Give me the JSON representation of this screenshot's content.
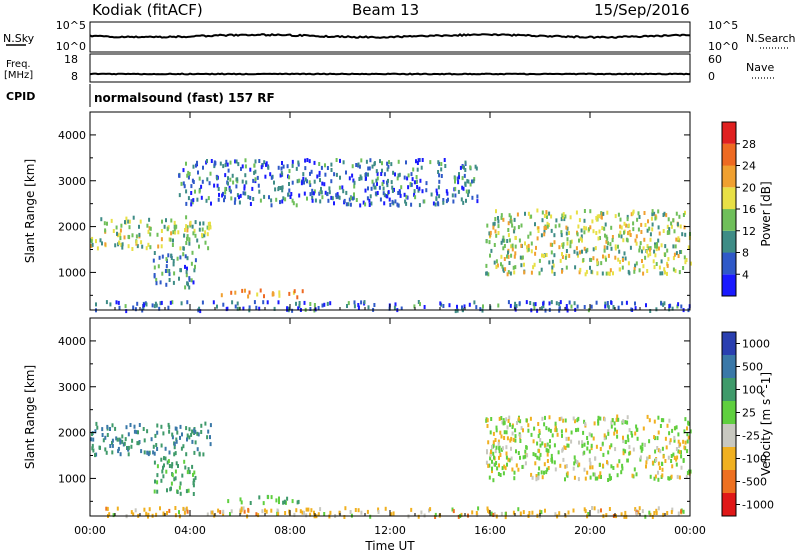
{
  "header": {
    "station": "Kodiak (fitACF)",
    "beam": "Beam 13",
    "date": "15/Sep/2016"
  },
  "strips": {
    "nsky_label": "N.Sky",
    "nsearch_label": "N.Search",
    "freq_label_1": "Freq.",
    "freq_label_2": "[MHz]",
    "nave_label": "Nave",
    "cpid_label": "CPID",
    "nsky_ticks": [
      "10^5",
      "10^0"
    ],
    "nsearch_ticks": [
      "10^5",
      "10^0"
    ],
    "freq_ticks": [
      "18",
      "8"
    ],
    "nave_ticks": [
      "60",
      "0"
    ],
    "cpid_text": "normalsound (fast) 157 RF"
  },
  "chart_data": [
    {
      "type": "heatmap",
      "title": "Power",
      "xlabel": "Time UT",
      "ylabel": "Slant Range [km]",
      "x_ticks": [
        "00:00",
        "04:00",
        "08:00",
        "12:00",
        "16:00",
        "20:00",
        "00:00"
      ],
      "x_range_hours": [
        0,
        24
      ],
      "y_ticks": [
        1000,
        2000,
        3000,
        4000
      ],
      "y_range_km": [
        180,
        4500
      ],
      "colorbar": {
        "label": "Power [dB]",
        "ticks": [
          "4",
          "8",
          "12",
          "16",
          "20",
          "24",
          "28"
        ],
        "range": [
          0,
          30
        ],
        "colors": [
          "#1a1aff",
          "#2f59c8",
          "#3e8c86",
          "#6fbf5a",
          "#e8e046",
          "#f0a030",
          "#ee6a22",
          "#e02020"
        ]
      },
      "echo_regions": [
        {
          "t_start": 0.0,
          "t_end": 4.8,
          "range_from_km": 1550,
          "range_to_km": 2250,
          "power_db": 14
        },
        {
          "t_start": 2.5,
          "t_end": 4.2,
          "range_from_km": 700,
          "range_to_km": 1500,
          "power_db": 9
        },
        {
          "t_start": 5.2,
          "t_end": 8.5,
          "range_from_km": 500,
          "range_to_km": 650,
          "power_db": 20
        },
        {
          "t_start": 15.8,
          "t_end": 24.0,
          "range_from_km": 1000,
          "range_to_km": 2400,
          "power_db": 15
        },
        {
          "t_start": 0.0,
          "t_end": 24.0,
          "range_from_km": 200,
          "range_to_km": 400,
          "power_db": 6
        },
        {
          "t_start": 3.5,
          "t_end": 15.5,
          "range_from_km": 2500,
          "range_to_km": 3500,
          "power_db": 7
        }
      ]
    },
    {
      "type": "heatmap",
      "title": "Velocity",
      "xlabel": "Time UT",
      "ylabel": "Slant Range [km]",
      "x_ticks": [
        "00:00",
        "04:00",
        "08:00",
        "12:00",
        "16:00",
        "20:00",
        "00:00"
      ],
      "x_range_hours": [
        0,
        24
      ],
      "y_ticks": [
        1000,
        2000,
        3000,
        4000
      ],
      "y_range_km": [
        180,
        4500
      ],
      "colorbar": {
        "label": "Velocity [m s^-1]",
        "ticks": [
          "1000",
          "500",
          "100",
          "25",
          "-25",
          "-100",
          "-500",
          "-1000"
        ],
        "colors": [
          "#2a3fb0",
          "#3a78a8",
          "#3f9a6a",
          "#5fcf3f",
          "#c8c8c0",
          "#f0b020",
          "#ee7020",
          "#e01818"
        ]
      },
      "echo_regions": [
        {
          "t_start": 0.0,
          "t_end": 4.8,
          "range_from_km": 1550,
          "range_to_km": 2250,
          "velocity_ms": 300
        },
        {
          "t_start": 2.5,
          "t_end": 4.2,
          "range_from_km": 700,
          "range_to_km": 1500,
          "velocity_ms": 80
        },
        {
          "t_start": 5.2,
          "t_end": 8.5,
          "range_from_km": 500,
          "range_to_km": 650,
          "velocity_ms": 60
        },
        {
          "t_start": 15.8,
          "t_end": 24.0,
          "range_from_km": 1000,
          "range_to_km": 2400,
          "velocity_ms": 0
        },
        {
          "t_start": 0.0,
          "t_end": 24.0,
          "range_from_km": 200,
          "range_to_km": 400,
          "velocity_ms": -50
        }
      ]
    }
  ]
}
